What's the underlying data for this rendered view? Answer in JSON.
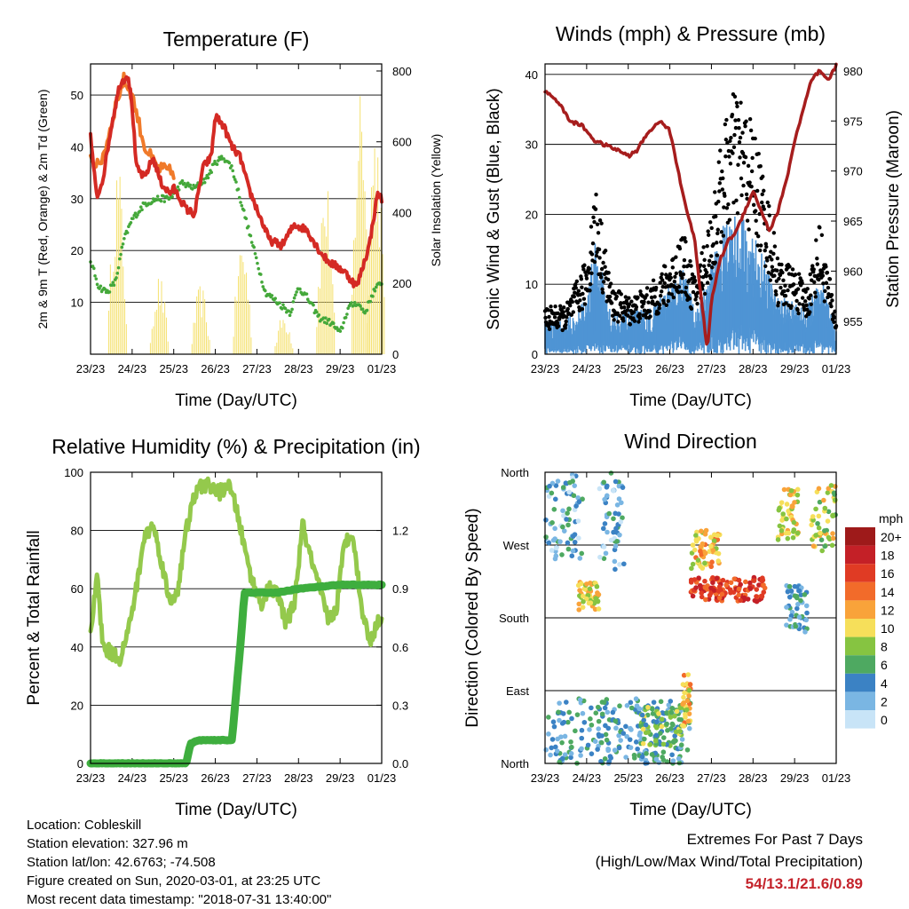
{
  "chart_data": [
    {
      "type": "line",
      "title": "Temperature (F)",
      "xlabel": "Time (Day/UTC)",
      "ylabel": "2m & 9m T (Red, Orange) & 2m Td (Green)",
      "y2label": "Solar Insolation (Yellow)",
      "x_ticks": [
        "23/23",
        "24/23",
        "25/23",
        "26/23",
        "27/23",
        "28/23",
        "29/23",
        "01/23"
      ],
      "ylim": [
        0,
        56
      ],
      "y_ticks": [
        10,
        20,
        30,
        40,
        50
      ],
      "y2lim": [
        0,
        820
      ],
      "y2_ticks": [
        0,
        200,
        400,
        600,
        800
      ],
      "grid": true,
      "series": [
        {
          "name": "2m T",
          "color": "#d42a24",
          "x": [
            0,
            0.15,
            0.3,
            0.5,
            0.7,
            0.9,
            1.0,
            1.1,
            1.3,
            1.5,
            1.7,
            1.9,
            2.0,
            2.3,
            2.5,
            2.7,
            2.9,
            3.0,
            3.2,
            3.4,
            3.6,
            3.8,
            4.0,
            4.3,
            4.6,
            4.9,
            5.2,
            5.5,
            5.7,
            5.9,
            6.1,
            6.4,
            6.7,
            6.9,
            7.0
          ],
          "values": [
            42,
            30,
            34,
            44,
            52,
            54,
            48,
            36,
            34,
            38,
            33,
            31,
            32,
            28,
            27,
            36,
            38,
            46,
            44,
            40,
            38,
            32,
            28,
            22,
            21,
            25,
            24,
            20,
            18,
            17,
            16,
            13,
            21,
            31,
            30
          ]
        },
        {
          "name": "9m T",
          "color": "#f07a2a",
          "x": [
            0,
            0.2,
            0.4,
            0.6,
            0.8,
            1.0,
            1.3,
            1.6,
            2.0
          ],
          "values": [
            38,
            36,
            41,
            48,
            53,
            50,
            40,
            36,
            35
          ]
        },
        {
          "name": "2m Td",
          "color": "#44a83a",
          "x": [
            0,
            0.2,
            0.4,
            0.6,
            0.8,
            1.0,
            1.3,
            1.6,
            1.9,
            2.2,
            2.5,
            2.8,
            3.0,
            3.2,
            3.4,
            3.6,
            3.8,
            4.0,
            4.2,
            4.5,
            4.8,
            5.0,
            5.2,
            5.5,
            5.8,
            6.0,
            6.2,
            6.4,
            6.6,
            6.8,
            7.0
          ],
          "values": [
            18,
            13,
            12,
            14,
            22,
            26,
            29,
            30,
            30,
            33,
            32,
            34,
            37,
            38,
            36,
            30,
            24,
            18,
            12,
            10,
            8,
            13,
            11,
            7,
            6,
            4,
            9,
            10,
            8,
            12,
            14
          ]
        },
        {
          "name": "Solar Insolation",
          "color": "#f5e170",
          "axis": "y2",
          "peaks": [
            {
              "day": 0.65,
              "value": 560
            },
            {
              "day": 1.65,
              "value": 230
            },
            {
              "day": 2.65,
              "value": 200
            },
            {
              "day": 3.65,
              "value": 350
            },
            {
              "day": 4.65,
              "value": 120
            },
            {
              "day": 5.65,
              "value": 520
            },
            {
              "day": 6.5,
              "value": 820
            },
            {
              "day": 6.85,
              "value": 700
            }
          ]
        }
      ]
    },
    {
      "type": "scatter",
      "title": "Winds (mph) & Pressure (mb)",
      "xlabel": "Time (Day/UTC)",
      "ylabel": "Sonic Wind & Gust (Blue, Black)",
      "y2label": "Station Pressure (Maroon)",
      "x_ticks": [
        "23/23",
        "24/23",
        "25/23",
        "26/23",
        "27/23",
        "28/23",
        "29/23",
        "01/23"
      ],
      "ylim": [
        0,
        41.5
      ],
      "y_ticks": [
        0,
        10,
        20,
        30,
        40
      ],
      "y2lim": [
        951.7,
        980.7
      ],
      "y2_ticks": [
        955,
        960,
        965,
        970,
        975,
        980
      ],
      "grid": true,
      "series": [
        {
          "name": "Sonic Wind",
          "color": "#4f94d4",
          "x": [
            0,
            0.5,
            1.0,
            1.2,
            1.6,
            2.0,
            2.5,
            3.0,
            3.3,
            3.6,
            4.0,
            4.3,
            4.6,
            5.0,
            5.3,
            5.6,
            6.0,
            6.3,
            6.6,
            7.0
          ],
          "values": [
            3,
            3,
            5,
            10,
            4,
            4,
            4,
            6,
            8,
            4,
            8,
            12,
            13,
            11,
            8,
            5,
            5,
            4,
            8,
            2
          ]
        },
        {
          "name": "Gust",
          "color": "#000000",
          "x": [
            0,
            0.5,
            1.0,
            1.2,
            1.6,
            2.0,
            2.5,
            3.0,
            3.3,
            3.6,
            4.0,
            4.3,
            4.6,
            5.0,
            5.3,
            5.6,
            6.0,
            6.3,
            6.6,
            7.0
          ],
          "values": [
            5,
            5,
            10,
            18,
            7,
            6,
            7,
            10,
            13,
            8,
            15,
            24,
            28,
            24,
            18,
            10,
            9,
            7,
            14,
            4
          ]
        },
        {
          "name": "Station Pressure",
          "color": "#a61d1d",
          "axis": "y2",
          "x": [
            0,
            0.3,
            0.6,
            0.9,
            1.2,
            1.5,
            1.8,
            2.0,
            2.2,
            2.5,
            2.8,
            3.0,
            3.3,
            3.6,
            3.9,
            4.0,
            4.2,
            4.4,
            4.6,
            4.8,
            5.0,
            5.2,
            5.4,
            5.6,
            5.8,
            6.0,
            6.2,
            6.4,
            6.6,
            6.8,
            7.0
          ],
          "values": [
            978,
            977,
            975,
            974.5,
            973,
            972.5,
            972,
            971.5,
            972,
            974,
            975,
            974,
            968,
            963,
            952,
            957,
            961,
            963,
            964,
            966,
            968,
            966,
            964,
            966,
            969,
            973,
            976,
            979,
            980,
            979,
            980.5
          ]
        }
      ]
    },
    {
      "type": "line",
      "title": "Relative Humidity (%) & Precipitation (in)",
      "xlabel": "Time (Day/UTC)",
      "ylabel": "Percent & Total Rainfall",
      "x_ticks": [
        "23/23",
        "24/23",
        "25/23",
        "26/23",
        "27/23",
        "28/23",
        "29/23",
        "01/23"
      ],
      "ylim": [
        0,
        100
      ],
      "y_ticks": [
        0,
        20,
        40,
        60,
        80,
        100
      ],
      "y2lim": [
        0,
        1.5
      ],
      "y2_ticks": [
        "0.0",
        "0.3",
        "0.6",
        "0.9",
        "1.2"
      ],
      "grid": true,
      "series": [
        {
          "name": "Relative Humidity",
          "color": "#94c94c",
          "x": [
            0,
            0.15,
            0.3,
            0.5,
            0.7,
            0.9,
            1.1,
            1.3,
            1.5,
            1.7,
            1.9,
            2.1,
            2.3,
            2.5,
            2.7,
            2.9,
            3.1,
            3.3,
            3.5,
            3.7,
            3.9,
            4.1,
            4.3,
            4.5,
            4.7,
            4.9,
            5.1,
            5.3,
            5.5,
            5.7,
            5.9,
            6.1,
            6.3,
            6.5,
            6.7,
            6.9,
            7.0
          ],
          "values": [
            45,
            65,
            40,
            38,
            36,
            45,
            60,
            78,
            82,
            70,
            55,
            60,
            80,
            92,
            96,
            95,
            93,
            96,
            88,
            74,
            62,
            55,
            60,
            58,
            48,
            55,
            82,
            70,
            60,
            50,
            52,
            75,
            80,
            55,
            42,
            48,
            50
          ]
        },
        {
          "name": "Total Precipitation",
          "color": "#3eae3e",
          "axis": "y2",
          "x": [
            0,
            1.0,
            2.0,
            2.3,
            2.4,
            2.6,
            3.4,
            3.6,
            3.7,
            4.0,
            4.5,
            5.0,
            5.5,
            6.0,
            6.5,
            7.0
          ],
          "values": [
            0,
            0,
            0,
            0,
            0.1,
            0.12,
            0.12,
            0.6,
            0.88,
            0.88,
            0.88,
            0.9,
            0.91,
            0.92,
            0.92,
            0.92
          ]
        }
      ]
    },
    {
      "type": "scatter",
      "title": "Wind Direction",
      "xlabel": "Time (Day/UTC)",
      "ylabel": "Direction (Colored By Speed)",
      "x_ticks": [
        "23/23",
        "24/23",
        "25/23",
        "26/23",
        "27/23",
        "28/23",
        "29/23",
        "01/23"
      ],
      "y_ticks": [
        "North",
        "East",
        "South",
        "West",
        "North"
      ],
      "ylim": [
        0,
        360
      ],
      "grid": true,
      "colorbar": {
        "title": "mph",
        "labels": [
          "20+",
          "18",
          "16",
          "14",
          "12",
          "10",
          "8",
          "6",
          "4",
          "2",
          "0"
        ],
        "colors": [
          "#9e1a1a",
          "#c42027",
          "#e03b24",
          "#f26b2a",
          "#f9a33a",
          "#f6df5a",
          "#86c441",
          "#4ea961",
          "#3b82c4",
          "#7ab6e3",
          "#c8e4f7"
        ]
      },
      "clusters": [
        {
          "x_range": [
            0,
            0.9
          ],
          "dir_range": [
            250,
            360
          ],
          "speed": 3
        },
        {
          "x_range": [
            0.8,
            1.3
          ],
          "dir_range": [
            190,
            225
          ],
          "speed": 10
        },
        {
          "x_range": [
            1.3,
            1.9
          ],
          "dir_range": [
            240,
            360
          ],
          "speed": 3
        },
        {
          "x_range": [
            0,
            3.5
          ],
          "dir_range": [
            0,
            80
          ],
          "speed": 4
        },
        {
          "x_range": [
            2.3,
            3.3
          ],
          "dir_range": [
            20,
            70
          ],
          "speed": 7
        },
        {
          "x_range": [
            3.3,
            3.5
          ],
          "dir_range": [
            40,
            110
          ],
          "speed": 11
        },
        {
          "x_range": [
            3.5,
            5.3
          ],
          "dir_range": [
            200,
            230
          ],
          "speed": 16
        },
        {
          "x_range": [
            3.5,
            4.2
          ],
          "dir_range": [
            240,
            290
          ],
          "speed": 11
        },
        {
          "x_range": [
            5.6,
            6.1
          ],
          "dir_range": [
            270,
            340
          ],
          "speed": 10
        },
        {
          "x_range": [
            5.8,
            6.3
          ],
          "dir_range": [
            160,
            220
          ],
          "speed": 4
        },
        {
          "x_range": [
            6.4,
            7.0
          ],
          "dir_range": [
            260,
            345
          ],
          "speed": 9
        }
      ]
    }
  ],
  "info": {
    "location": "Location: Cobleskill",
    "elevation": "Station elevation: 327.96 m",
    "latlon": "Station lat/lon: 42.6763; -74.508",
    "created": "Figure created on Sun, 2020-03-01, at 23:25 UTC",
    "recent": "Most recent data timestamp: \"2018-07-31 13:40:00\""
  },
  "extremes": {
    "title": "Extremes For Past 7 Days",
    "subtitle": "(High/Low/Max Wind/Total Precipitation)",
    "values": "54/13.1/21.6/0.89"
  }
}
